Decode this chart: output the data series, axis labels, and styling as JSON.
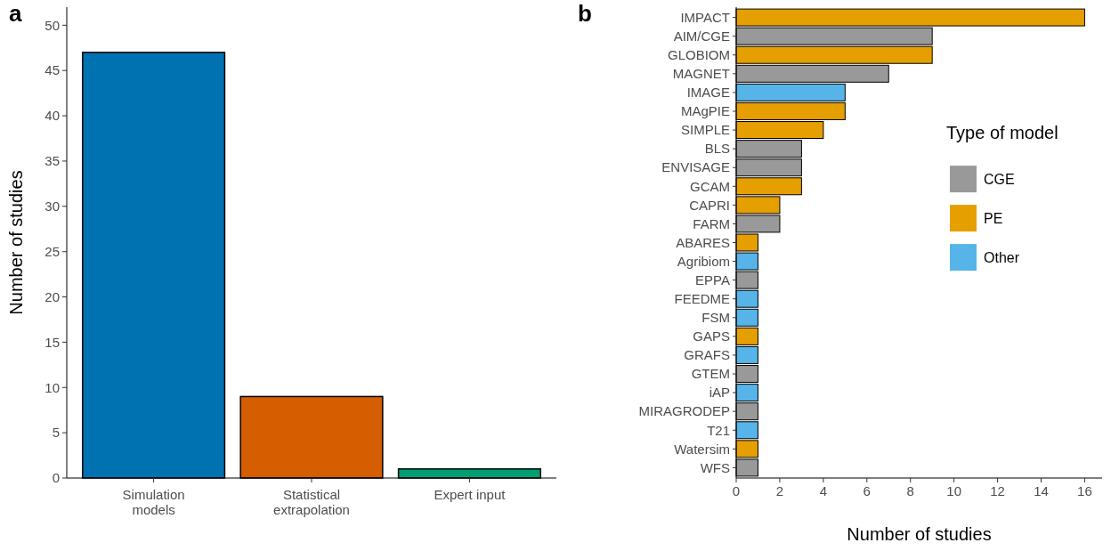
{
  "chart_data": [
    {
      "type": "bar",
      "title": "a",
      "ylabel": "Number of studies",
      "categories": [
        "Simulation\nmodels",
        "Statistical\nextrapolation",
        "Expert input"
      ],
      "values": [
        47,
        9,
        1
      ],
      "colors": [
        "#0072b2",
        "#d55e00",
        "#009e73"
      ],
      "ylim": [
        0,
        52
      ],
      "yticks": [
        0,
        5,
        10,
        15,
        20,
        25,
        30,
        35,
        40,
        45,
        50
      ],
      "grid": false,
      "legend": false
    },
    {
      "type": "bar",
      "title": "b",
      "xlabel": "Number of studies",
      "orientation": "horizontal",
      "legend": "right",
      "legend_title": "Type of model",
      "categories": [
        "IMPACT",
        "AIM/CGE",
        "GLOBIOM",
        "MAGNET",
        "IMAGE",
        "MAgPIE",
        "SIMPLE",
        "BLS",
        "ENVISAGE",
        "GCAM",
        "CAPRI",
        "FARM",
        "ABARES",
        "Agribiom",
        "EPPA",
        "FEEDME",
        "FSM",
        "GAPS",
        "GRAFS",
        "GTEM",
        "iAP",
        "MIRAGRODEP",
        "T21",
        "Watersim",
        "WFS"
      ],
      "series": [
        {
          "name": "CGE",
          "color": "#999999",
          "values": [
            null,
            9,
            null,
            7,
            null,
            null,
            null,
            3,
            3,
            null,
            null,
            2,
            null,
            null,
            1,
            null,
            null,
            null,
            null,
            1,
            null,
            1,
            null,
            null,
            1
          ]
        },
        {
          "name": "PE",
          "color": "#e69f00",
          "values": [
            16,
            null,
            9,
            null,
            null,
            5,
            4,
            null,
            null,
            3,
            2,
            null,
            1,
            null,
            null,
            null,
            null,
            1,
            null,
            null,
            null,
            null,
            null,
            1,
            null
          ]
        },
        {
          "name": "Other",
          "color": "#56b4e9",
          "values": [
            null,
            null,
            null,
            null,
            5,
            null,
            null,
            null,
            null,
            null,
            null,
            null,
            null,
            1,
            null,
            1,
            1,
            null,
            1,
            null,
            1,
            null,
            1,
            null,
            null
          ]
        }
      ],
      "xlim": [
        0,
        16.8
      ],
      "xticks": [
        0,
        2,
        4,
        6,
        8,
        10,
        12,
        14,
        16
      ],
      "grid": false
    }
  ]
}
